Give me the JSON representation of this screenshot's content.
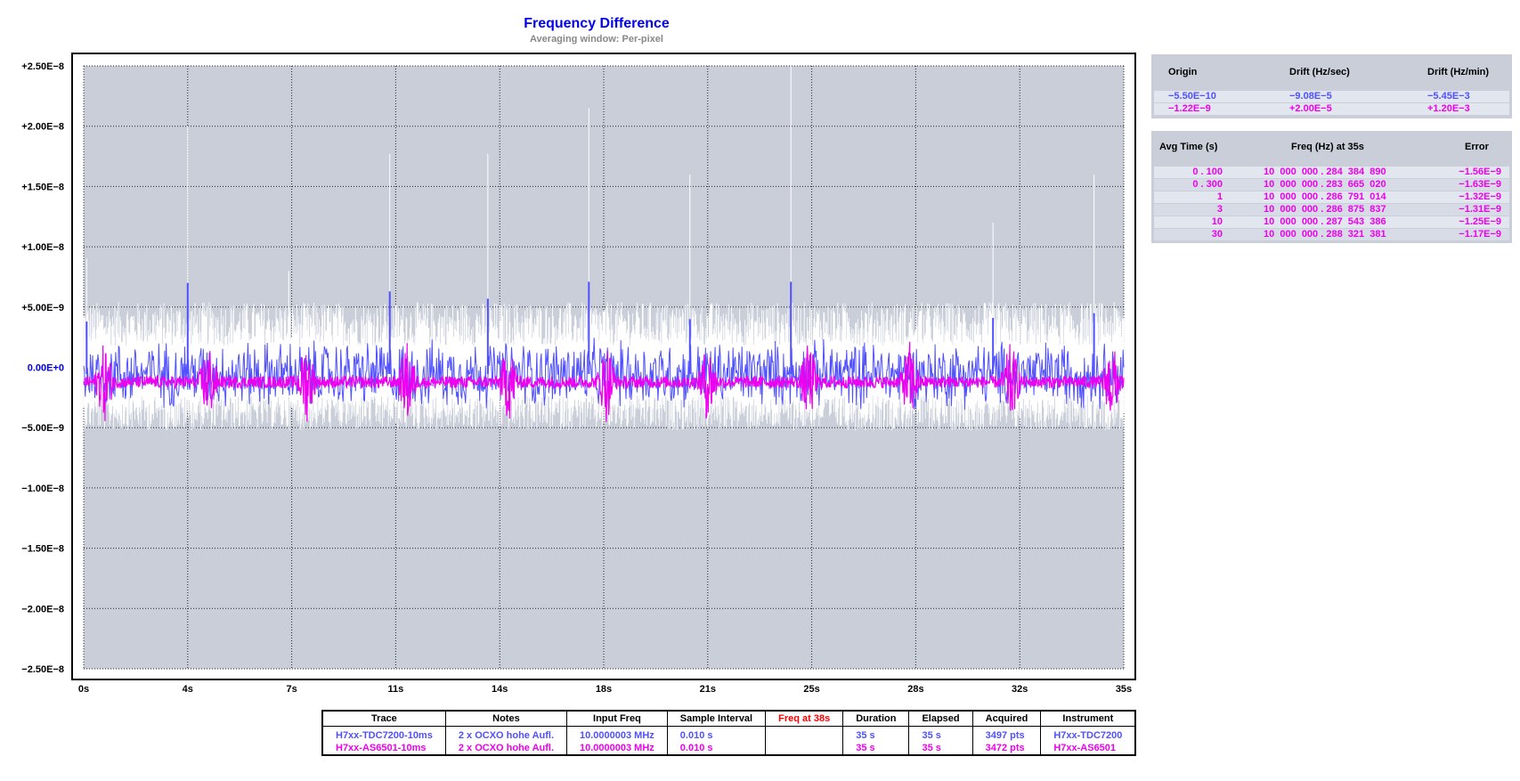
{
  "chart_data": {
    "type": "line",
    "title": "Frequency Difference",
    "subtitle": "Averaging window: Per-pixel",
    "xlim": [
      0,
      35
    ],
    "ylim": [
      -2.5e-08,
      2.5e-08
    ],
    "x_ticks": [
      "0s",
      "4s",
      "7s",
      "11s",
      "14s",
      "18s",
      "21s",
      "25s",
      "28s",
      "32s",
      "35s"
    ],
    "y_ticks": [
      "+2.50E−8",
      "+2.00E−8",
      "+1.50E−8",
      "+1.00E−8",
      "+5.00E−9",
      "0.00E+0",
      "−5.00E−9",
      "−1.00E−8",
      "−1.50E−8",
      "−2.00E−8",
      "−2.50E−8"
    ],
    "grid": true,
    "plot_background": "#c9ced9",
    "series": [
      {
        "name": "H7xx-TDC7200-10ms",
        "color": "#5050ff",
        "envelope": "#ffffff",
        "spikes": [
          [
            0.1,
            3.8e-09
          ],
          [
            3.5,
            7e-09
          ],
          [
            10.3,
            6.3e-09
          ],
          [
            13.6,
            5.7e-09
          ],
          [
            17.0,
            7.1e-09
          ],
          [
            20.4,
            4e-09
          ],
          [
            23.8,
            7.1e-09
          ],
          [
            30.6,
            4.1e-09
          ],
          [
            34.0,
            4.5e-09
          ]
        ],
        "envelope_spikes": [
          [
            0.1,
            9e-09
          ],
          [
            3.5,
            2e-08
          ],
          [
            6.9,
            8e-09
          ],
          [
            10.3,
            1.77e-08
          ],
          [
            13.6,
            1.77e-08
          ],
          [
            17.0,
            2.15e-08
          ],
          [
            20.4,
            1.6e-08
          ],
          [
            23.8,
            2.5e-08
          ],
          [
            30.6,
            1.2e-08
          ],
          [
            34.0,
            1.6e-08
          ]
        ],
        "noise_amplitude": 2.6e-09,
        "offset": -5.5e-10
      },
      {
        "name": "H7xx-AS6501-10ms",
        "color": "#ee00ee",
        "offset": -1.22e-09,
        "noise_amplitude": 5e-10,
        "bursts": [
          0.7,
          4.2,
          7.5,
          10.9,
          14.3,
          17.6,
          21.0,
          24.4,
          27.8,
          31.2,
          34.6
        ]
      }
    ]
  },
  "drift_panel": {
    "headers": [
      "Origin",
      "Drift (Hz/sec)",
      "Drift (Hz/min)"
    ],
    "rows": [
      {
        "origin": "−5.50E−10",
        "drift_sec": "−9.08E−5",
        "drift_min": "−5.45E−3",
        "color": "#5050ff"
      },
      {
        "origin": "−1.22E−9",
        "drift_sec": "+2.00E−5",
        "drift_min": "+1.20E−3",
        "color": "#ee00ee"
      }
    ]
  },
  "freq_panel": {
    "headers": [
      "Avg Time (s)",
      "Freq (Hz) at 35s",
      "Error"
    ],
    "rows": [
      {
        "avg": "0 . 100",
        "freq": "10  000  000 . 284  384  890",
        "error": "−1.56E−9"
      },
      {
        "avg": "0 . 300",
        "freq": "10  000  000 . 283  665  020",
        "error": "−1.63E−9"
      },
      {
        "avg": "1",
        "freq": "10  000  000 . 286  791  014",
        "error": "−1.32E−9"
      },
      {
        "avg": "3",
        "freq": "10  000  000 . 286  875  837",
        "error": "−1.31E−9"
      },
      {
        "avg": "10",
        "freq": "10  000  000 . 287  543  386",
        "error": "−1.25E−9"
      },
      {
        "avg": "30",
        "freq": "10  000  000 . 288  321  381",
        "error": "−1.17E−9"
      }
    ]
  },
  "info_table": {
    "headers": [
      "Trace",
      "Notes",
      "Input Freq",
      "Sample Interval",
      "Freq at 38s",
      "Duration",
      "Elapsed",
      "Acquired",
      "Instrument"
    ],
    "rows": [
      {
        "trace": "H7xx-TDC7200-10ms",
        "notes": "2 x OCXO hohe Aufl.",
        "input_freq": "10.0000003 MHz",
        "sample_interval": "0.010 s",
        "freq_at": "",
        "duration": "35 s",
        "elapsed": "35 s",
        "acquired": "3497 pts",
        "instrument": "H7xx-TDC7200"
      },
      {
        "trace": "H7xx-AS6501-10ms",
        "notes": "2 x OCXO hohe Aufl.",
        "input_freq": "10.0000003 MHz",
        "sample_interval": "0.010 s",
        "freq_at": "",
        "duration": "35 s",
        "elapsed": "35 s",
        "acquired": "3472 pts",
        "instrument": "H7xx-AS6501"
      }
    ]
  }
}
